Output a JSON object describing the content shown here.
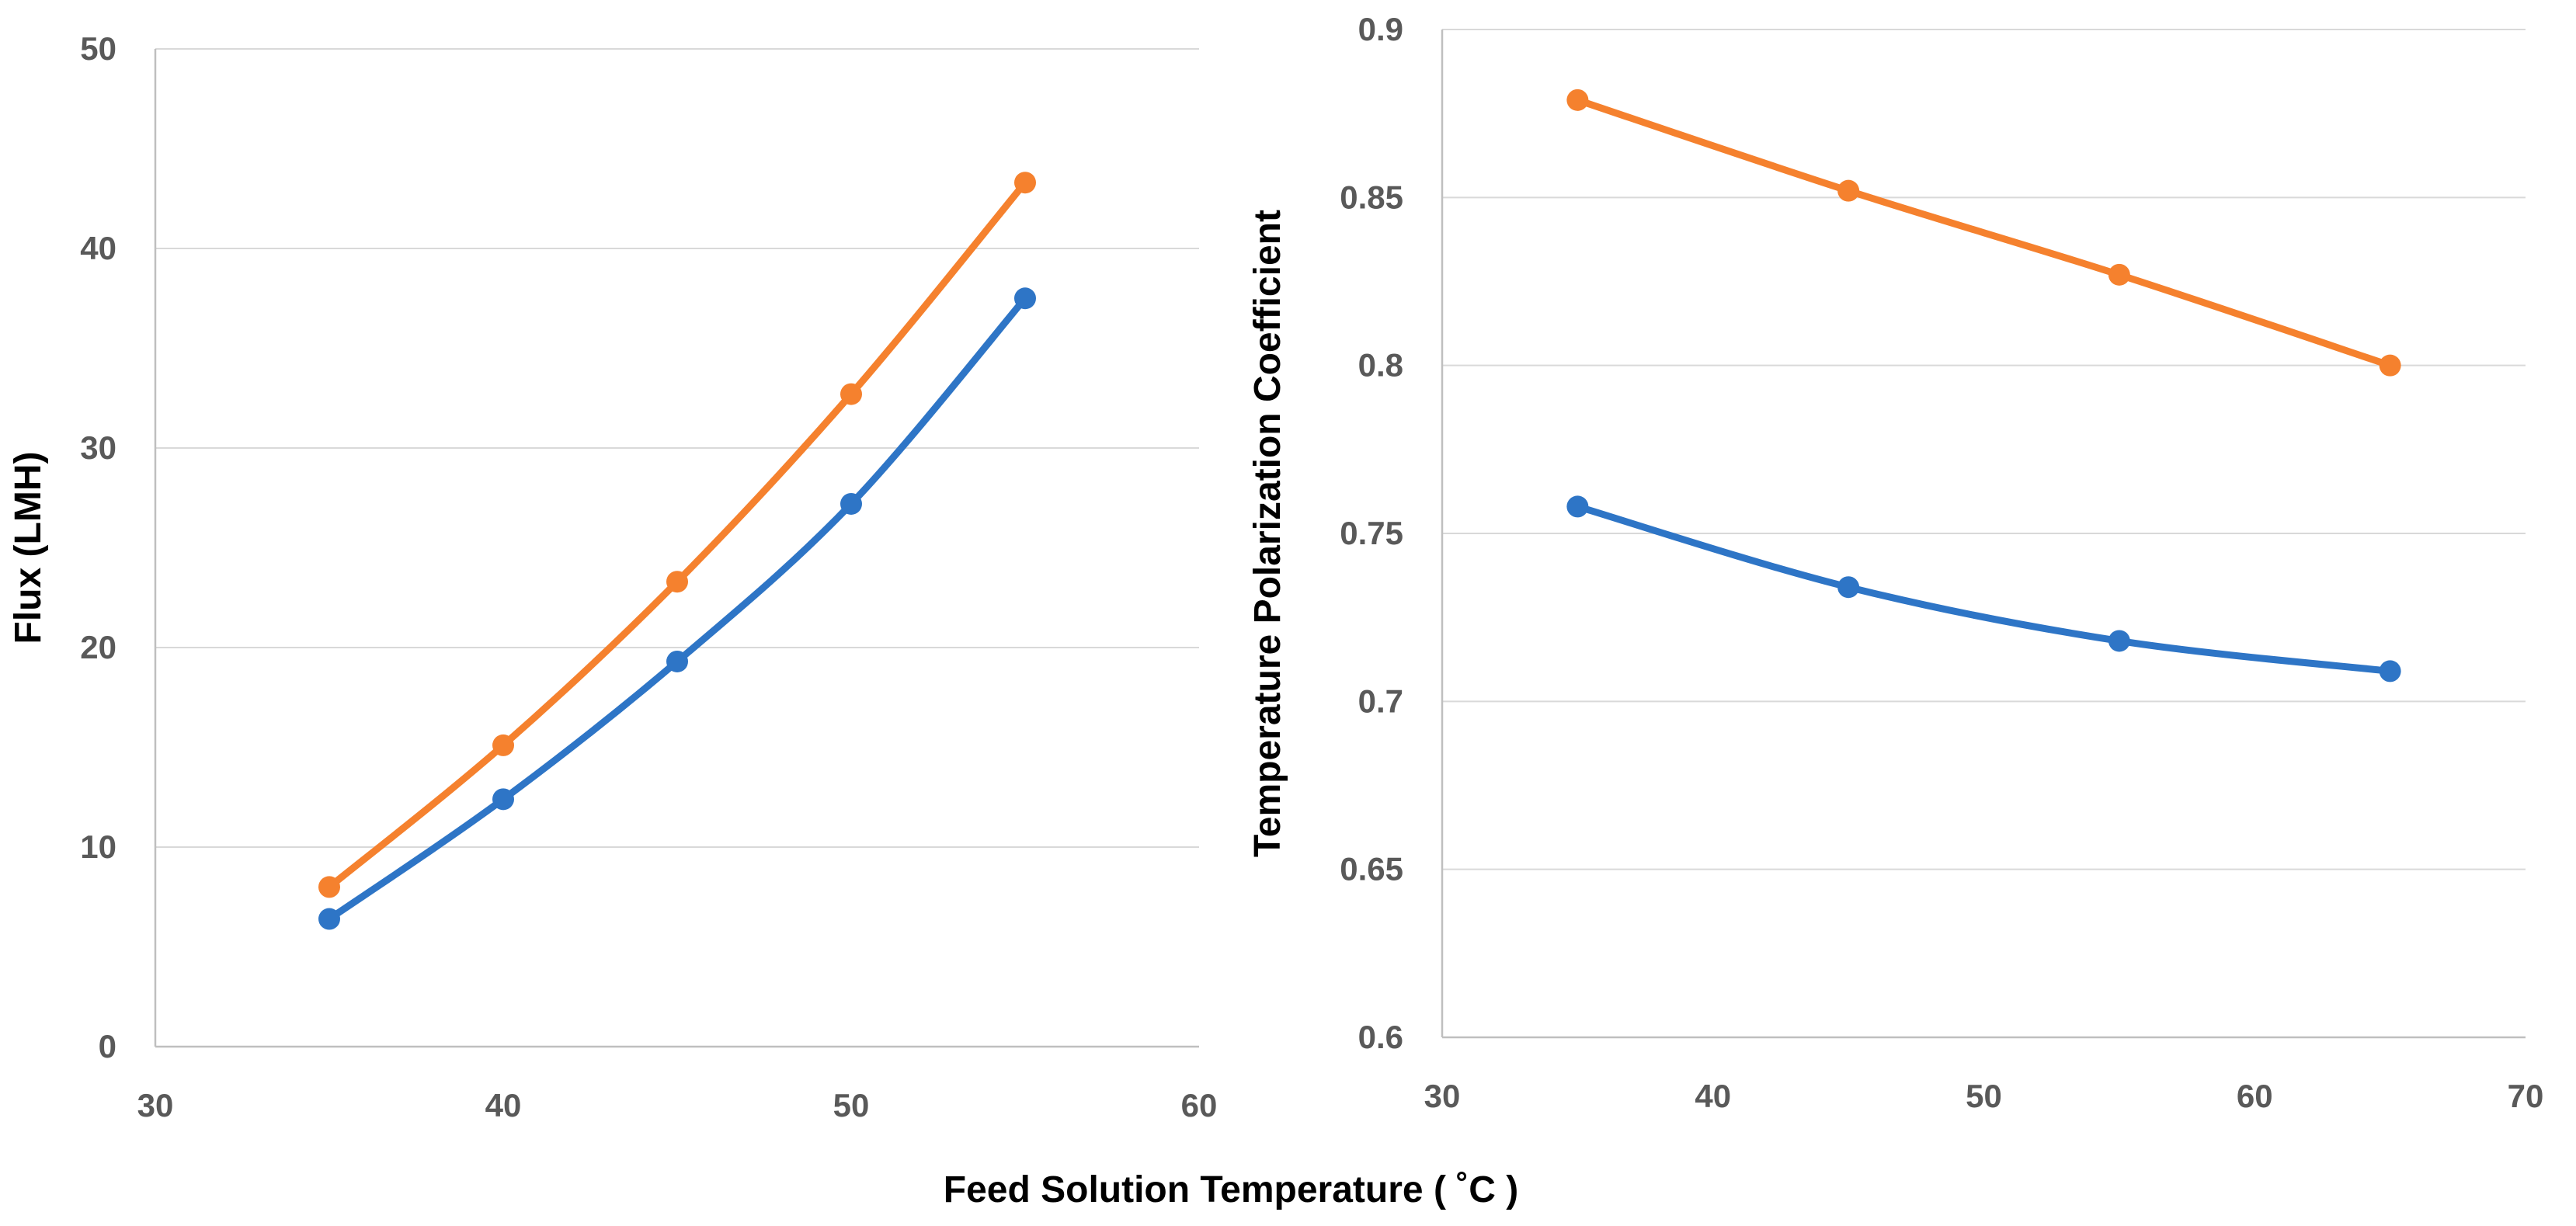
{
  "chart_data": [
    {
      "type": "line",
      "title": "",
      "xlabel": "Feed Solution Temperature ( ˚C )",
      "ylabel": "Flux (LMH)",
      "xlim": [
        30,
        60
      ],
      "ylim": [
        0,
        50
      ],
      "xticks": [
        "30",
        "40",
        "50",
        "60"
      ],
      "yticks": [
        "0",
        "10",
        "20",
        "30",
        "40",
        "50"
      ],
      "grid": true,
      "series": [
        {
          "name": "Series 1",
          "color": "#2e75c6",
          "x": [
            35,
            40,
            45,
            50,
            55
          ],
          "values": [
            6.4,
            12.4,
            19.3,
            27.2,
            37.5
          ]
        },
        {
          "name": "Series 2",
          "color": "#f5812e",
          "x": [
            35,
            40,
            45,
            50,
            55
          ],
          "values": [
            8.0,
            15.1,
            23.3,
            32.7,
            43.3
          ]
        }
      ]
    },
    {
      "type": "line",
      "title": "",
      "xlabel": "Feed Solution Temperature ( ˚C )",
      "ylabel": "Temperature Polarization Coefficient",
      "xlim": [
        30,
        70
      ],
      "ylim": [
        0.6,
        0.9
      ],
      "xticks": [
        "30",
        "40",
        "50",
        "60",
        "70"
      ],
      "yticks": [
        "0.6",
        "0.65",
        "0.7",
        "0.75",
        "0.8",
        "0.85",
        "0.9"
      ],
      "grid": true,
      "series": [
        {
          "name": "Series 1",
          "color": "#2e75c6",
          "x": [
            35,
            45,
            55,
            65
          ],
          "values": [
            0.758,
            0.734,
            0.718,
            0.709
          ]
        },
        {
          "name": "Series 2",
          "color": "#f5812e",
          "x": [
            35,
            45,
            55,
            65
          ],
          "values": [
            0.879,
            0.852,
            0.827,
            0.8
          ]
        }
      ]
    }
  ]
}
